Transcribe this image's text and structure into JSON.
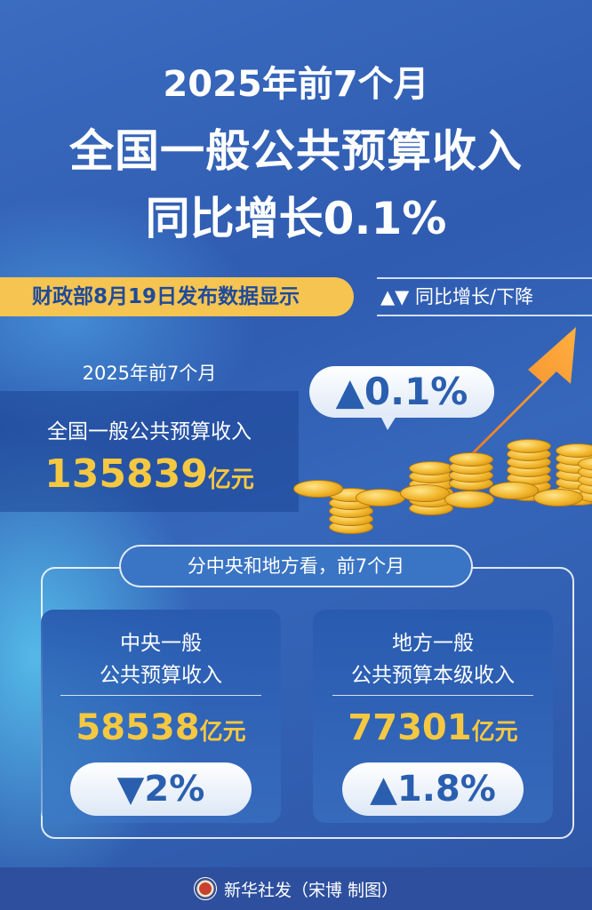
{
  "title": {
    "line1": "2025年前7个月",
    "line2": "全国一般公共预算收入",
    "line3": "同比增长0.1%"
  },
  "source_tag": "财政部8月19日发布数据显示",
  "legend": {
    "symbols": "▲▼",
    "label": "同比增长/下降"
  },
  "national": {
    "period": "2025年前7个月",
    "label": "全国一般公共预算收入",
    "value": "135839",
    "unit": "亿元",
    "change": "▲0.1%"
  },
  "breakdown": {
    "heading": "分中央和地方看，前7个月",
    "cards": [
      {
        "label1": "中央一般",
        "label2": "公共预算收入",
        "value": "58538",
        "unit": "亿元",
        "change": "▼2%"
      },
      {
        "label1": "地方一般",
        "label2": "公共预算本级收入",
        "value": "77301",
        "unit": "亿元",
        "change": "▲1.8%"
      }
    ]
  },
  "footer": {
    "credit": "新华社发（宋博 制图）"
  },
  "colors": {
    "accent_yellow": "#f6c451",
    "text_blue": "#2a5fb0",
    "background": "#2f5bb0"
  }
}
